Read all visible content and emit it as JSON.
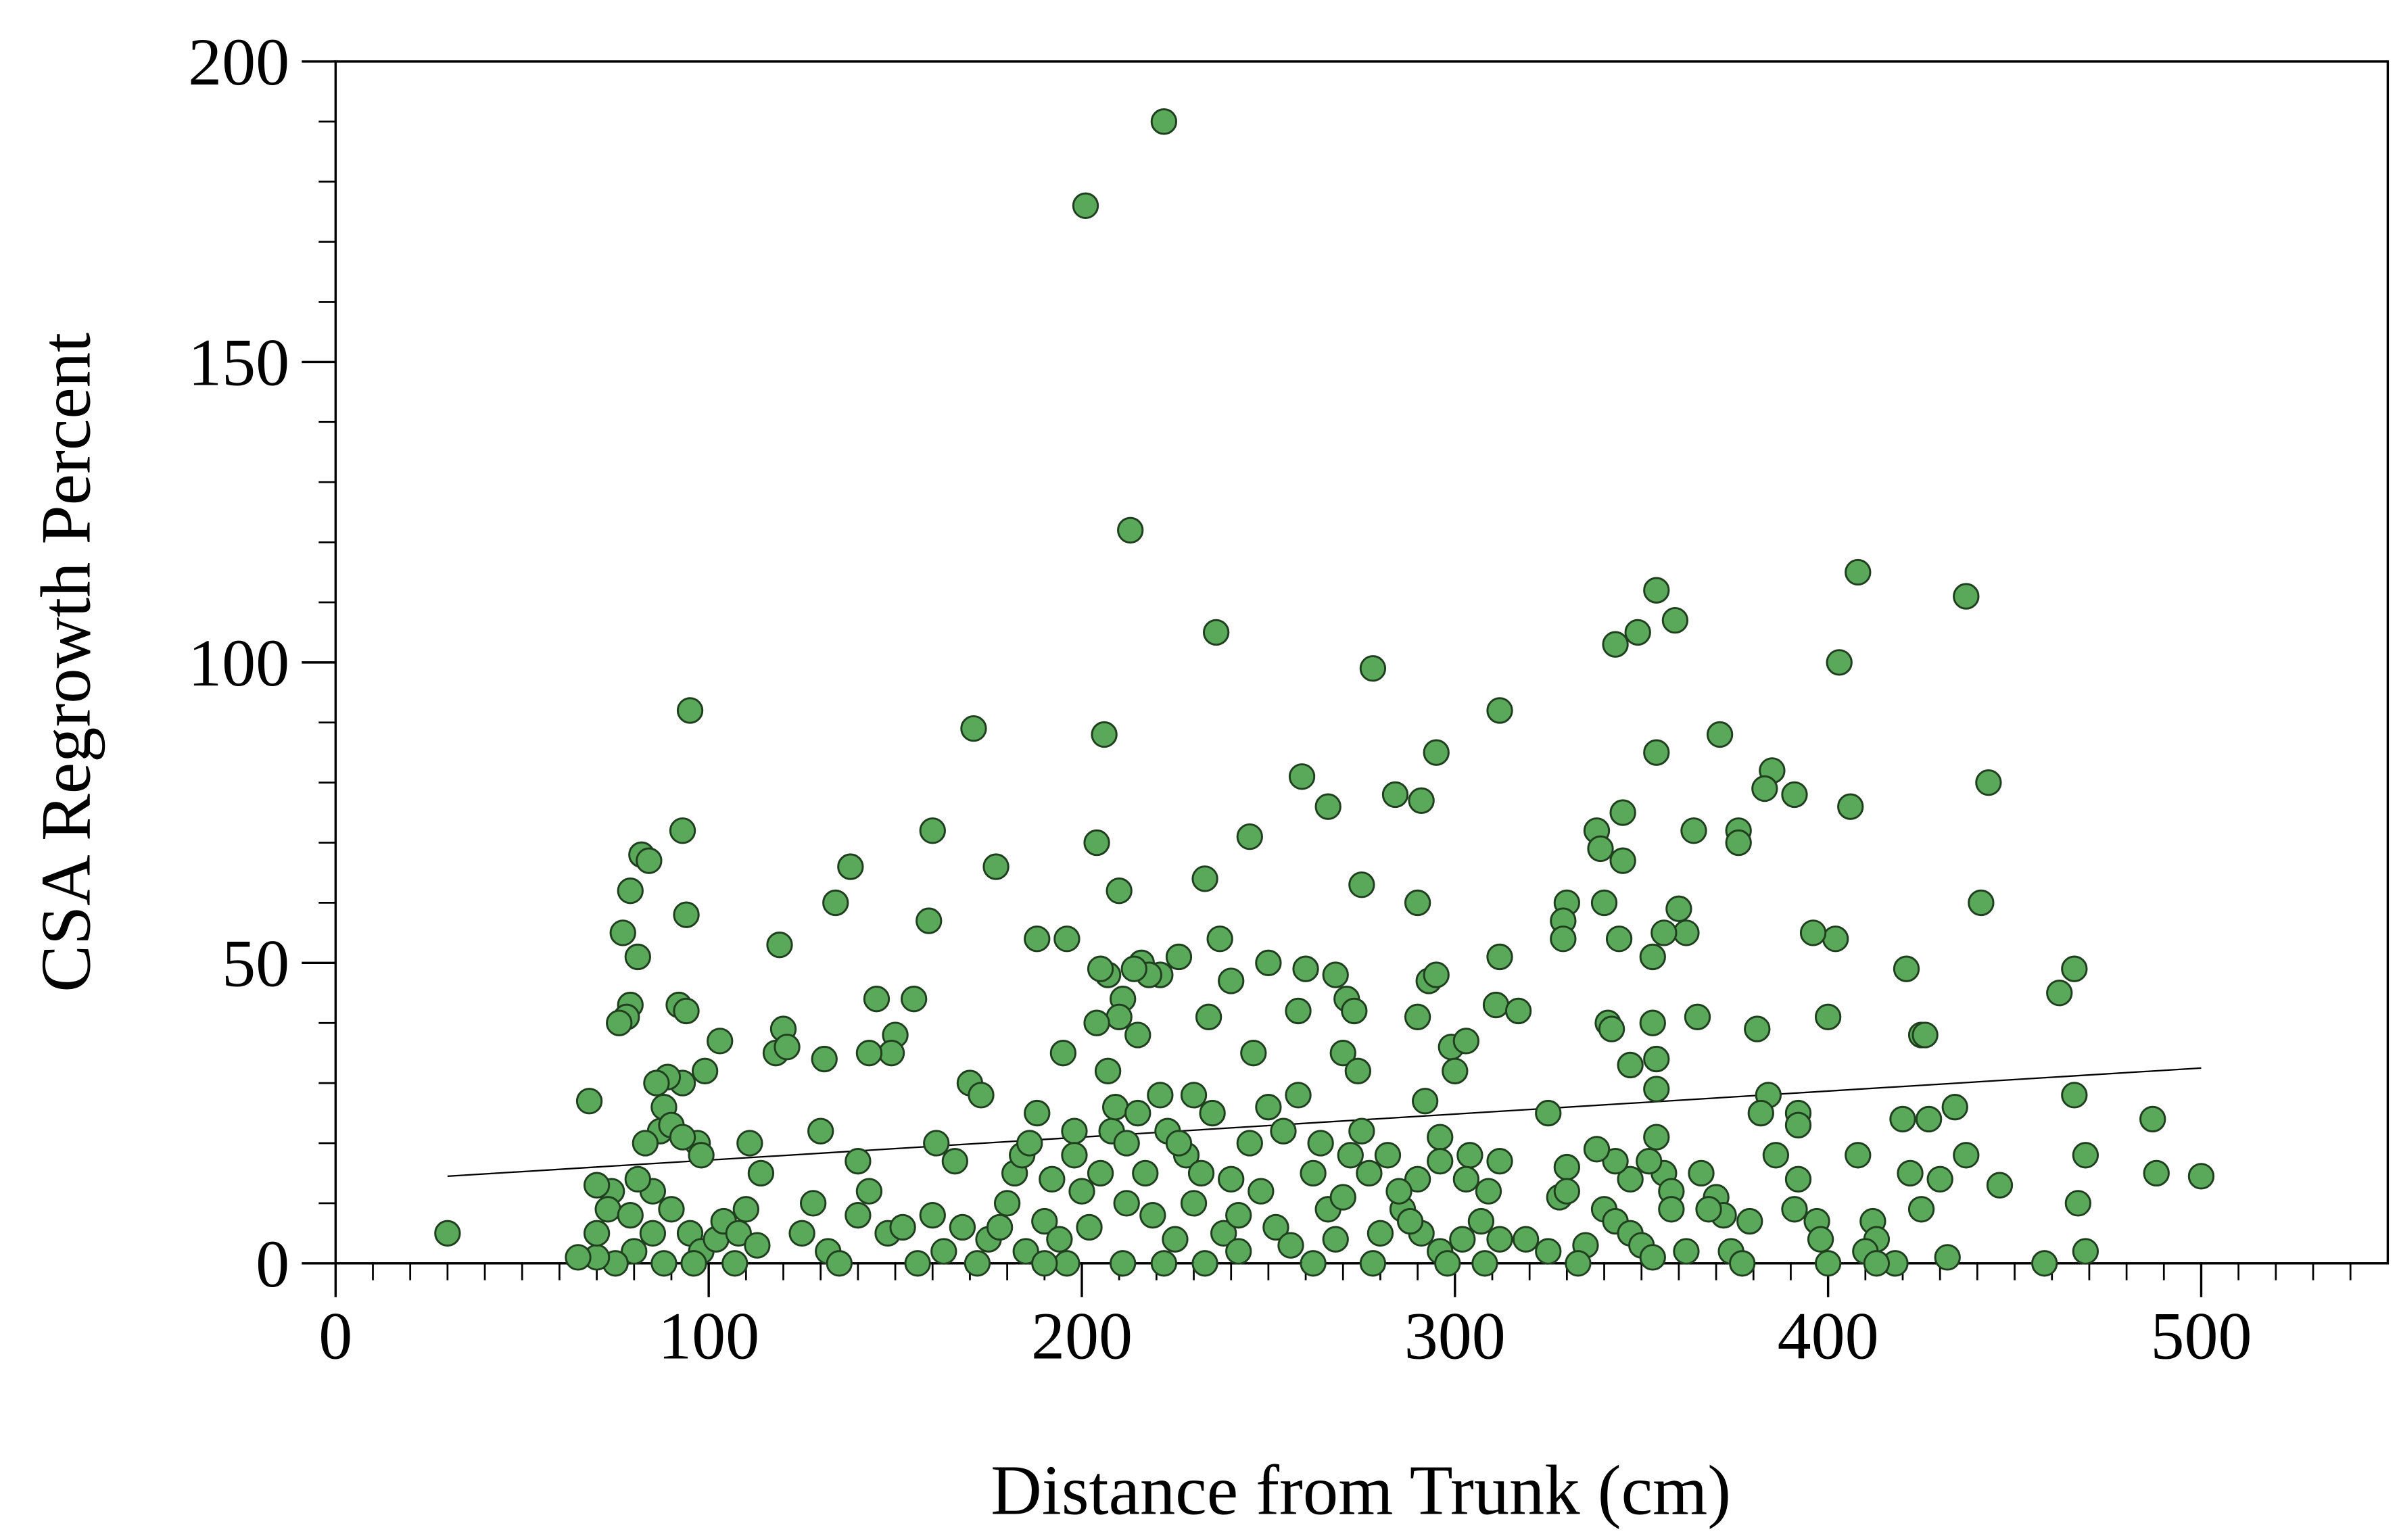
{
  "chart_data": {
    "type": "scatter",
    "x_label": "Distance from Trunk (cm)",
    "y_label": "CSA Regrowth Percent",
    "xlim": [
      0,
      550
    ],
    "ylim": [
      0,
      200
    ],
    "xticks": [
      0,
      100,
      200,
      300,
      400,
      500
    ],
    "yticks": [
      0,
      50,
      100,
      150,
      200
    ],
    "xminorticks": [
      10,
      20,
      30,
      40,
      50,
      60,
      70,
      80,
      90,
      110,
      120,
      130,
      140,
      150,
      160,
      170,
      180,
      190,
      210,
      220,
      230,
      240,
      250,
      260,
      270,
      280,
      290,
      310,
      320,
      330,
      340,
      350,
      360,
      370,
      380,
      390,
      410,
      420,
      430,
      440,
      450,
      460,
      470,
      480,
      490,
      510,
      520,
      530,
      540
    ],
    "yminorticks": [
      10,
      20,
      30,
      40,
      60,
      70,
      80,
      90,
      110,
      120,
      130,
      140,
      160,
      170,
      180,
      190
    ],
    "color": "#5aa95a",
    "edge_color": "#1f3f1f",
    "x": [
      30,
      95,
      201,
      222,
      213,
      236,
      278,
      312,
      354,
      343,
      349,
      359,
      408,
      437,
      403,
      443,
      441,
      466,
      462,
      466,
      467,
      469,
      469,
      458,
      487,
      488,
      500,
      446,
      434,
      437,
      421,
      425,
      426,
      430,
      432,
      427,
      420,
      422,
      425,
      412,
      413,
      418,
      408,
      406,
      402,
      400,
      396,
      391,
      385,
      383,
      381,
      384,
      382,
      392,
      392,
      386,
      392,
      391,
      397,
      398,
      400,
      410,
      413,
      376,
      376,
      371,
      364,
      365,
      362,
      360,
      356,
      354,
      345,
      338,
      339,
      340,
      344,
      345,
      353,
      353,
      341,
      342,
      354,
      347,
      354,
      354,
      356,
      358,
      352,
      347,
      343,
      338,
      340,
      343,
      347,
      350,
      353,
      358,
      362,
      366,
      370,
      372,
      374,
      379,
      377,
      368,
      330,
      329,
      329,
      312,
      311,
      317,
      325,
      312,
      309,
      304,
      303,
      307,
      312,
      319,
      325,
      328,
      330,
      330,
      335,
      333,
      295,
      291,
      284,
      290,
      293,
      290,
      295,
      299,
      303,
      300,
      292,
      296,
      296,
      290,
      286,
      291,
      296,
      298,
      302,
      308,
      275,
      266,
      259,
      260,
      268,
      271,
      273,
      270,
      274,
      258,
      250,
      246,
      245,
      240,
      233,
      234,
      237,
      226,
      221,
      216,
      218,
      214,
      207,
      205,
      211,
      210,
      215,
      207,
      204,
      210,
      204,
      206,
      188,
      196,
      195,
      171,
      160,
      177,
      159,
      170,
      173,
      166,
      161,
      145,
      155,
      150,
      149,
      143,
      138,
      134,
      140,
      131,
      130,
      119,
      120,
      118,
      121,
      111,
      114,
      103,
      99,
      92,
      94,
      93,
      89,
      86,
      88,
      93,
      94,
      82,
      84,
      79,
      77,
      81,
      79,
      78,
      76,
      68,
      87,
      90,
      97,
      98,
      93,
      83,
      85,
      81,
      74,
      70,
      73,
      79,
      85,
      90,
      95,
      98,
      102,
      104,
      108,
      110,
      113,
      107,
      96,
      88,
      80,
      75,
      70,
      65,
      70,
      125,
      128,
      132,
      135,
      140,
      143,
      148,
      152,
      156,
      160,
      163,
      168,
      172,
      175,
      178,
      180,
      182,
      184,
      186,
      188,
      190,
      192,
      194,
      196,
      198,
      200,
      202,
      205,
      208,
      209,
      212,
      215,
      217,
      219,
      221,
      223,
      225,
      228,
      230,
      232,
      235,
      238,
      240,
      242,
      245,
      248,
      250,
      252,
      254,
      256,
      258,
      262,
      264,
      266,
      268,
      270,
      272,
      275,
      277,
      280,
      282,
      285,
      288,
      233,
      222,
      211,
      185,
      190,
      242,
      262,
      278,
      212,
      226,
      230,
      198
    ],
    "values": [
      5,
      92,
      176,
      190,
      122,
      105,
      99,
      92,
      112,
      103,
      105,
      107,
      115,
      111,
      100,
      80,
      60,
      49,
      45,
      28,
      10,
      18,
      2,
      0,
      24,
      15,
      14.5,
      13,
      26,
      18,
      49,
      38,
      38,
      14,
      1,
      24,
      24,
      15,
      9,
      7,
      4,
      0,
      18,
      76,
      54,
      41,
      55,
      78,
      82,
      79,
      39,
      28,
      25,
      25,
      23,
      18,
      14,
      9,
      7,
      4,
      0,
      2,
      0,
      72,
      70,
      88,
      72,
      41,
      55,
      59,
      55,
      85,
      75,
      72,
      69,
      60,
      54,
      67,
      51,
      40,
      40,
      39,
      34,
      33,
      29,
      21,
      15,
      12,
      17,
      14,
      17,
      19,
      9,
      7,
      5,
      3,
      1,
      9,
      2,
      15,
      11,
      8,
      2,
      7,
      0,
      9,
      60,
      57,
      54,
      51,
      43,
      42,
      25,
      17,
      12,
      18,
      14,
      7,
      4,
      4,
      2,
      11,
      16,
      12,
      3,
      0,
      85,
      77,
      78,
      60,
      47,
      41,
      48,
      36,
      37,
      32,
      27,
      21,
      17,
      14,
      9,
      5,
      2,
      0,
      4,
      0,
      63,
      76,
      81,
      49,
      48,
      44,
      42,
      35,
      32,
      42,
      50,
      35,
      71,
      47,
      64,
      41,
      54,
      51,
      48,
      50,
      48,
      49,
      48,
      49,
      44,
      41,
      38,
      32,
      40,
      62,
      70,
      88,
      54,
      54,
      35,
      89,
      72,
      66,
      57,
      30,
      28,
      17,
      20,
      44,
      44,
      38,
      35,
      35,
      66,
      60,
      17,
      34,
      22,
      53,
      39,
      35,
      36,
      20,
      15,
      37,
      32,
      43,
      42,
      30,
      31,
      30,
      26,
      72,
      58,
      68,
      67,
      62,
      55,
      51,
      43,
      41,
      40,
      27,
      22,
      23,
      20,
      18,
      21,
      20,
      12,
      14,
      12,
      13,
      9,
      8,
      5,
      9,
      5,
      2,
      4,
      7,
      5,
      9,
      3,
      0,
      0,
      0,
      2,
      0,
      1,
      1,
      5,
      5,
      10,
      2,
      0,
      8,
      12,
      5,
      6,
      0,
      8,
      2,
      6,
      0,
      4,
      6,
      10,
      15,
      18,
      20,
      25,
      7,
      14,
      4,
      0,
      22,
      12,
      6,
      15,
      22,
      26,
      20,
      25,
      15,
      8,
      28,
      22,
      4,
      18,
      10,
      15,
      25,
      5,
      14,
      8,
      20,
      12,
      26,
      6,
      22,
      3,
      28,
      15,
      20,
      9,
      4,
      11,
      18,
      22,
      15,
      5,
      18,
      12,
      7,
      0,
      0,
      0,
      2,
      0,
      2,
      0,
      0,
      10,
      20,
      28,
      18
    ],
    "trendline": {
      "x": [
        30,
        500
      ],
      "values": [
        14.5,
        32.5
      ]
    }
  }
}
